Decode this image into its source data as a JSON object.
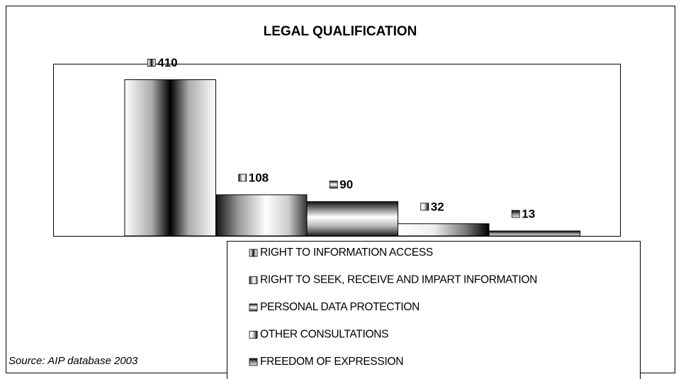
{
  "chart_data": {
    "type": "bar",
    "title": "LEGAL QUALIFICATION",
    "source": "Source: AIP database 2003",
    "ylim": [
      0,
      450
    ],
    "series": [
      {
        "name": "RIGHT TO INFORMATION ACCESS",
        "values": [
          410
        ]
      },
      {
        "name": "RIGHT TO SEEK, RECEIVE AND IMPART INFORMATION",
        "values": [
          108
        ]
      },
      {
        "name": "PERSONAL DATA PROTECTION",
        "values": [
          90
        ]
      },
      {
        "name": "OTHER CONSULTATIONS",
        "values": [
          32
        ]
      },
      {
        "name": "FREEDOM OF EXPRESSION",
        "values": [
          13
        ]
      }
    ]
  }
}
